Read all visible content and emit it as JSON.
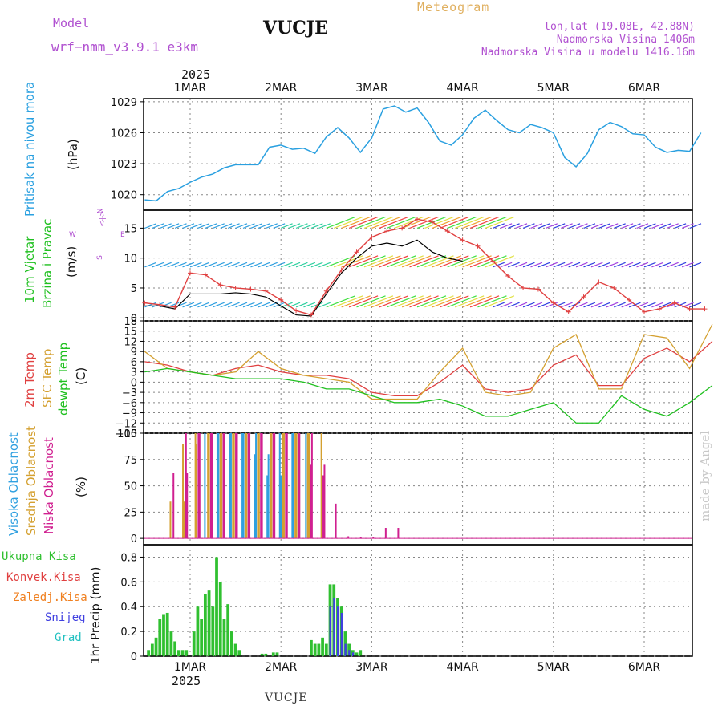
{
  "header": {
    "model_label": "Model",
    "model_name": "wrf−nmm_v3.9.1  e3km",
    "station": "VUCJE",
    "meteogram": "Meteogram",
    "lonlat": "lon,lat (19.08E, 42.88N)",
    "altitude": "Nadmorska Visina 1406m",
    "model_altitude": "Nadmorska Visina u modelu 1416.16m",
    "year": "2025"
  },
  "footer": {
    "station": "VUCJE",
    "signature": "made by Angel"
  },
  "days": [
    "1MAR",
    "2MAR",
    "3MAR",
    "4MAR",
    "5MAR",
    "6MAR"
  ],
  "colors": {
    "pressure": "#2aa0e0",
    "wind_speed": "#e04040",
    "gust": "#000000",
    "t2m": "#e04040",
    "sfc": "#d4a030",
    "dew": "#20c020",
    "high": "#30a0e0",
    "mid": "#d4a030",
    "low": "#d02090",
    "total": "#30c030",
    "conv": "#e04040",
    "frz": "#f08020",
    "snow": "#4040e0",
    "grad": "#20c0c0"
  },
  "panels": {
    "pressure": {
      "ylabel_left": "Pritisak na nivou mora",
      "unit": "(hPa)",
      "ticks": [
        "1029",
        "1026",
        "1023",
        "1020"
      ]
    },
    "wind": {
      "ylabel_left1": "10m Vjetar",
      "ylabel_left2": "Brzina i Pravac",
      "unit": "(m/s)",
      "ticks": [
        "15",
        "10",
        "5",
        "0"
      ],
      "compass": {
        "n": "N",
        "s": "S",
        "e": "E",
        "w": "W"
      }
    },
    "temp": {
      "ylabel_t2m": "2m Temp",
      "ylabel_sfc": "SFC Temp",
      "ylabel_dew": "dewpt Temp",
      "unit": "(C)",
      "ticks": [
        "18",
        "15",
        "12",
        "9",
        "6",
        "3",
        "0",
        "−3",
        "−6",
        "−9",
        "−12",
        "−15"
      ]
    },
    "cloud": {
      "ylabel_high": "Visoka Oblacnost",
      "ylabel_mid": "Srednja Oblacnost",
      "ylabel_low": "Niska Oblacnost",
      "unit": "(%)",
      "ticks": [
        "100",
        "75",
        "50",
        "25",
        "0"
      ]
    },
    "precip": {
      "ylabel": "1hr Precip (mm)",
      "ticks": [
        "0.8",
        "0.6",
        "0.4",
        "0.2",
        "0"
      ],
      "legend": {
        "total": "Ukupna Kisa",
        "conv": "Konvek.Kisa",
        "frz": "Zaledj.Kisa",
        "snow": "Snijeg",
        "grad": "Grad"
      }
    }
  },
  "chart_data": [
    {
      "type": "line",
      "title": "Pritisak na nivou mora",
      "ylabel": "hPa",
      "ylim": [
        1018.5,
        1029.3
      ],
      "x_hours": [
        0,
        3,
        6,
        9,
        12,
        15,
        18,
        21,
        24,
        27,
        30,
        33,
        36,
        39,
        42,
        45,
        48,
        51,
        54,
        57,
        60,
        63,
        66,
        69,
        72,
        75,
        78,
        81,
        84,
        87,
        90,
        93,
        96,
        99,
        102,
        105,
        108,
        111,
        114,
        117,
        120,
        123,
        126,
        129,
        132,
        135,
        138,
        141,
        144,
        147
      ],
      "values": [
        1019.5,
        1019.4,
        1020.3,
        1020.6,
        1021.2,
        1021.7,
        1022.0,
        1022.6,
        1022.9,
        1022.9,
        1022.9,
        1024.6,
        1024.8,
        1024.4,
        1024.5,
        1024.0,
        1025.6,
        1026.5,
        1025.5,
        1024.1,
        1025.5,
        1028.3,
        1028.6,
        1028.0,
        1028.4,
        1027.0,
        1025.2,
        1024.8,
        1025.8,
        1027.4,
        1028.2,
        1027.2,
        1026.3,
        1026.0,
        1026.8,
        1026.5,
        1026.0,
        1023.6,
        1022.7,
        1024.0,
        1026.3,
        1027.0,
        1026.6,
        1025.9,
        1025.8,
        1024.6,
        1024.1,
        1024.3,
        1024.2,
        1026.0
      ],
      "note": "hourly sea-level pressure"
    },
    {
      "type": "line",
      "title": "10m Vjetar Brzina i Pravac",
      "ylabel": "m/s",
      "ylim": [
        -0.5,
        18
      ],
      "x_hours": [
        0,
        4,
        8,
        12,
        16,
        20,
        24,
        28,
        32,
        36,
        40,
        44,
        48,
        52,
        56,
        60,
        64,
        68,
        72,
        76,
        80,
        84,
        88,
        92,
        96,
        100,
        104,
        108,
        112,
        116,
        120,
        124,
        128,
        132,
        136,
        140,
        144,
        148
      ],
      "series": [
        {
          "name": "wind speed",
          "values": [
            2.5,
            2.2,
            1.8,
            7.5,
            7.2,
            5.5,
            5.0,
            4.8,
            4.5,
            3.0,
            1.2,
            0.5,
            4.5,
            8.0,
            11.0,
            13.5,
            14.5,
            15.0,
            16.5,
            16.0,
            14.5,
            13.0,
            12.0,
            9.5,
            7.0,
            5.0,
            4.8,
            2.5,
            1.0,
            3.5,
            6.0,
            5.0,
            3.0,
            1.0,
            1.5,
            2.5,
            1.5,
            1.5
          ]
        },
        {
          "name": "gust",
          "values": [
            2.0,
            2.0,
            1.5,
            4.0,
            4.0,
            4.0,
            4.2,
            4.0,
            3.5,
            2.0,
            0.5,
            0.3,
            4.0,
            7.5,
            10.0,
            12.0,
            12.5,
            12.0,
            13.0,
            11.0,
            10.0,
            9.5,
            null,
            null,
            null,
            null,
            null,
            null,
            null,
            null,
            null,
            null,
            null,
            null,
            null,
            null,
            null,
            null
          ]
        }
      ]
    },
    {
      "type": "line",
      "title": "2m Temp / SFC Temp / dewpt Temp",
      "ylabel": "C",
      "ylim": [
        -15,
        18
      ],
      "x_hours": [
        0,
        6,
        12,
        18,
        24,
        30,
        36,
        42,
        48,
        54,
        60,
        66,
        72,
        78,
        84,
        90,
        96,
        102,
        108,
        114,
        120,
        126,
        132,
        138,
        144,
        150
      ],
      "series": [
        {
          "name": "2m Temp",
          "values": [
            6,
            5,
            3,
            2,
            4,
            5,
            3,
            2,
            2,
            1,
            -3,
            -4,
            -4,
            0,
            5,
            -2,
            -3,
            -2,
            5,
            8,
            -1,
            -1,
            7,
            10,
            6,
            12
          ]
        },
        {
          "name": "SFC Temp",
          "values": [
            9,
            4,
            3,
            2,
            3,
            9,
            4,
            2,
            1,
            0,
            -5,
            -5,
            -5,
            3,
            10,
            -3,
            -4,
            -3,
            10,
            14,
            -2,
            -2,
            14,
            13,
            4,
            17
          ]
        },
        {
          "name": "dewpt Temp",
          "values": [
            3,
            4,
            3,
            2,
            1,
            1,
            1,
            0,
            -2,
            -2,
            -4,
            -6,
            -6,
            -5,
            -7,
            -10,
            -10,
            -8,
            -6,
            -12,
            -12,
            -4,
            -8,
            -10,
            -6,
            -1
          ]
        }
      ]
    },
    {
      "type": "bar",
      "title": "Oblacnost",
      "ylabel": "%",
      "ylim": [
        0,
        100
      ],
      "note": "hourly cloud fractions, 100% bars from ~1MAR to ~2MAR 12h, scattered after",
      "series": [
        {
          "name": "Visoka Oblacnost",
          "values": [
            0,
            0,
            0,
            100,
            100,
            100,
            100,
            80,
            60,
            100,
            100,
            0,
            0,
            0,
            0,
            0,
            0,
            0,
            0,
            0
          ]
        },
        {
          "name": "Srednja Oblacnost",
          "values": [
            35,
            90,
            100,
            100,
            100,
            100,
            100,
            100,
            100,
            100,
            100,
            100,
            0,
            0,
            0,
            0,
            0,
            0,
            0,
            0
          ]
        },
        {
          "name": "Niska Oblacnost",
          "values": [
            62,
            100,
            100,
            100,
            100,
            100,
            100,
            100,
            100,
            100,
            100,
            70,
            60,
            33,
            2,
            1,
            1,
            10,
            10,
            0
          ]
        }
      ]
    },
    {
      "type": "bar",
      "title": "1hr Precip",
      "ylabel": "mm",
      "ylim": [
        0,
        0.9
      ],
      "x_hours": [
        1,
        2,
        3,
        4,
        5,
        6,
        7,
        8,
        9,
        10,
        11,
        12,
        13,
        14,
        15,
        16,
        17,
        18,
        19,
        20,
        21,
        22,
        23,
        24,
        25,
        26,
        27,
        28,
        29,
        30,
        31,
        32,
        33,
        34,
        35,
        36,
        37,
        38,
        39,
        40,
        41,
        42,
        43,
        44,
        45,
        46,
        47,
        48,
        49,
        50,
        51,
        52,
        53,
        54,
        55,
        56,
        57,
        58,
        59,
        60,
        61,
        62,
        63,
        64,
        65,
        66,
        67,
        68,
        69,
        70,
        71,
        72
      ],
      "series": [
        {
          "name": "Ukupna Kisa",
          "values": [
            0.05,
            0.1,
            0.15,
            0.3,
            0.34,
            0.35,
            0.2,
            0.12,
            0.05,
            0.05,
            0.05,
            0,
            0.2,
            0.4,
            0.3,
            0.5,
            0.53,
            0.4,
            0.8,
            0.6,
            0.3,
            0.42,
            0.2,
            0.1,
            0.05,
            0,
            0,
            0,
            0,
            0,
            0.02,
            0.02,
            0,
            0.03,
            0.03,
            0,
            0,
            0,
            0,
            0,
            0,
            0,
            0,
            0.13,
            0.1,
            0.1,
            0.15,
            0.1,
            0.58,
            0.58,
            0.47,
            0.4,
            0.2,
            0.1,
            0.05,
            0.03,
            0.05,
            0,
            0,
            0,
            0,
            0,
            0,
            0,
            0,
            0,
            0,
            0,
            0,
            0,
            0,
            0
          ]
        },
        {
          "name": "Snijeg",
          "values": [
            0,
            0,
            0,
            0,
            0,
            0,
            0,
            0,
            0,
            0,
            0,
            0,
            0,
            0,
            0,
            0,
            0,
            0,
            0,
            0,
            0,
            0,
            0,
            0,
            0,
            0,
            0,
            0,
            0,
            0,
            0,
            0,
            0,
            0,
            0,
            0,
            0,
            0,
            0,
            0,
            0,
            0,
            0,
            0,
            0,
            0,
            0,
            0,
            0.4,
            0.47,
            0.4,
            0.35,
            0.1,
            0.05,
            0.03,
            0,
            0,
            0,
            0,
            0,
            0,
            0,
            0,
            0,
            0,
            0,
            0,
            0,
            0,
            0,
            0,
            0
          ]
        }
      ]
    }
  ]
}
